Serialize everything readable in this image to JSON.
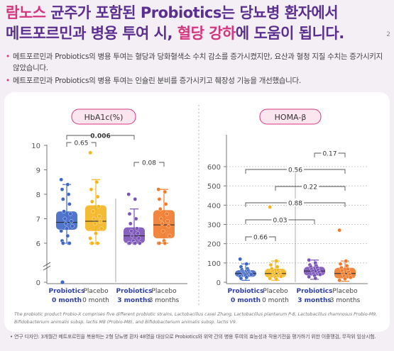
{
  "headline": {
    "line1_pink": "람노스",
    "line1_purple": "균주가 포함된 Probiotics",
    "line1_rest": "는 당뇨병 환자에서",
    "line2_purple": "메트포르민과 병용 투여 시, ",
    "line2_pink": "혈당 강하",
    "line2_purple2": "에 도움",
    "line2_rest": "이 됩니다.",
    "superscript": "2"
  },
  "bullets": [
    "메트포르민과 Probiotics의 병용 투여는 혈당과 당화혈색소 수치 감소를 증가시켰지만, 요산과 혈청 지질 수치는 증가시키지 않았습니다.",
    "메트포르민과 Probiotics의 병용 투여는 인슐린 분비를 증가시키고 췌장성 기능을 개선했습니다."
  ],
  "chart_data": [
    {
      "type": "box",
      "title": "HbA1c(%)",
      "yticks": [
        0,
        6,
        7,
        8,
        9,
        10
      ],
      "axis_break": true,
      "categories": [
        "Probiotics\n0 month",
        "Placebo\n0 month",
        "Probiotics\n3 months",
        "Placebo\n3 months"
      ],
      "colors": [
        "#3f66c6",
        "#f2b51e",
        "#7a52b8",
        "#f07a2a"
      ],
      "boxes": [
        {
          "q1": 6.55,
          "median": 6.85,
          "q3": 7.3,
          "whisker_low": 5.6,
          "whisker_high": 8.4
        },
        {
          "q1": 6.5,
          "median": 6.9,
          "q3": 7.55,
          "whisker_low": 5.5,
          "whisker_high": 8.6
        },
        {
          "q1": 6.0,
          "median": 6.3,
          "q3": 6.65,
          "whisker_low": 5.4,
          "whisker_high": 7.4
        },
        {
          "q1": 6.2,
          "median": 6.75,
          "q3": 7.35,
          "whisker_low": 5.5,
          "whisker_high": 8.2
        }
      ],
      "points": [
        [
          8.6,
          8.4,
          8.2,
          8.0,
          7.8,
          7.6,
          7.3,
          7.2,
          7.0,
          6.9,
          6.8,
          6.7,
          6.6,
          6.5,
          6.3,
          6.1,
          5.9,
          5.7,
          5.2
        ],
        [
          9.7,
          8.5,
          8.2,
          7.9,
          7.7,
          7.5,
          7.3,
          7.1,
          7.0,
          6.9,
          6.8,
          6.6,
          6.4,
          6.2,
          6.0,
          5.8,
          5.6,
          5.3
        ],
        [
          8.0,
          7.8,
          7.2,
          7.0,
          6.8,
          6.6,
          6.5,
          6.4,
          6.3,
          6.2,
          6.1,
          6.0,
          5.9,
          5.8,
          5.6,
          5.4
        ],
        [
          8.2,
          8.1,
          7.8,
          7.6,
          7.4,
          7.2,
          7.0,
          6.9,
          6.8,
          6.7,
          6.5,
          6.3,
          6.1,
          6.0,
          5.8,
          5.5
        ]
      ],
      "outlier_low": [
        {
          "group": 0,
          "y": 0.2
        }
      ],
      "comparisons": [
        {
          "from": 0,
          "to": 2,
          "label": "0.006",
          "bold": true
        },
        {
          "from": 0,
          "to": 1,
          "label": "0.65"
        },
        {
          "from": 2,
          "to": 3,
          "label": "0.08"
        }
      ]
    },
    {
      "type": "box",
      "title": "HOMA-β",
      "yticks": [
        0,
        100,
        200,
        300,
        400,
        500,
        600
      ],
      "ylim": [
        0,
        620
      ],
      "categories": [
        "Probiotics\n0 month",
        "Placebo\n0 month",
        "Probiotics\n3 months",
        "Placebo\n3 months"
      ],
      "colors": [
        "#3f66c6",
        "#f2b51e",
        "#7a52b8",
        "#f07a2a"
      ],
      "boxes": [
        {
          "q1": 28,
          "median": 45,
          "q3": 62,
          "whisker_low": 10,
          "whisker_high": 95
        },
        {
          "q1": 25,
          "median": 45,
          "q3": 70,
          "whisker_low": 10,
          "whisker_high": 110
        },
        {
          "q1": 35,
          "median": 58,
          "q3": 80,
          "whisker_low": 15,
          "whisker_high": 115
        },
        {
          "q1": 20,
          "median": 45,
          "q3": 75,
          "whisker_low": 5,
          "whisker_high": 110
        }
      ],
      "points": [
        [
          120,
          95,
          80,
          70,
          65,
          60,
          55,
          50,
          48,
          45,
          42,
          40,
          35,
          30,
          25,
          20
        ],
        [
          390,
          110,
          90,
          80,
          70,
          62,
          55,
          50,
          45,
          40,
          35,
          30,
          25,
          20,
          15
        ],
        [
          115,
          100,
          90,
          85,
          80,
          75,
          68,
          62,
          58,
          52,
          45,
          40,
          35,
          28,
          20
        ],
        [
          270,
          110,
          95,
          85,
          75,
          68,
          60,
          52,
          45,
          40,
          32,
          25,
          18,
          10
        ]
      ],
      "comparisons": [
        {
          "from": 2,
          "to": 3,
          "label": "0.17"
        },
        {
          "from": 0,
          "to": 3,
          "label": "0.56"
        },
        {
          "from": 1,
          "to": 3,
          "label": "0.22"
        },
        {
          "from": 0,
          "to": 3,
          "label": "0.88"
        },
        {
          "from": 0,
          "to": 2,
          "label": "0.03"
        },
        {
          "from": 0,
          "to": 1,
          "label": "0.66"
        }
      ]
    }
  ],
  "caption_lines": [
    "The probiotic product Probio-X comprises five different probiotic strains, Lactobacillus casei Zhang, Lactobacillus plantarum P-8, Lactobacillus rhamnosus Probio-M9,",
    "Bifidobacterium animalis subsp. lactis M8 (Probio-M8), and Bifidobacterium animalis subsp. lactis V9."
  ],
  "footnote": "• 연구 디자인: 3개월간 메트포르민을 복용하는 2형 당뇨병 환자 48명을 대상으로 Probiotics와 위약 간의 병용 투여의 효능성과 작용기전을 평가하기 위한 이중맹검, 무작위 임상시험."
}
